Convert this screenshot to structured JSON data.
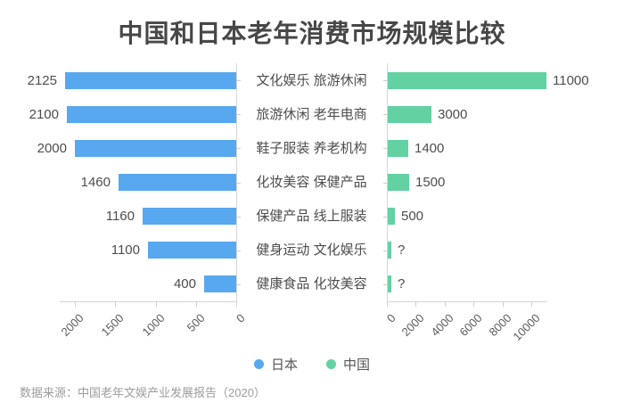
{
  "title": "中国和日本老年消费市场规模比较",
  "source_note": "数据来源：中国老年文娱产业发展报告（2020）",
  "legend": {
    "items": [
      {
        "label": "日本",
        "color": "#57a8ef"
      },
      {
        "label": "中国",
        "color": "#63d1a2"
      }
    ]
  },
  "chart_data": {
    "type": "bar",
    "subtype": "diverging-horizontal-tornado",
    "title": "中国和日本老年消费市场规模比较",
    "grid": false,
    "legend_position": "bottom",
    "categories": [
      "文化娱乐 旅游休闲",
      "旅游休闲 老年电商",
      "鞋子服装 养老机构",
      "化妆美容 保健产品",
      "保健产品 线上服装",
      "健身运动 文化娱乐",
      "健康食品 化妆美容"
    ],
    "series": [
      {
        "name": "日本",
        "side": "left",
        "color": "#57a8ef",
        "values": [
          2125,
          2100,
          2000,
          1460,
          1160,
          1100,
          400
        ],
        "value_labels": [
          "2125",
          "2100",
          "2000",
          "1460",
          "1160",
          "1100",
          "400"
        ],
        "axis_ticks": [
          "2000",
          "1500",
          "1000",
          "500",
          "0"
        ],
        "axis_tick_values": [
          2000,
          1500,
          1000,
          500,
          0
        ],
        "xlim": [
          0,
          2190
        ],
        "axis_reversed": true
      },
      {
        "name": "中国",
        "side": "right",
        "color": "#63d1a2",
        "values": [
          11000,
          3000,
          1400,
          1500,
          500,
          null,
          null
        ],
        "value_labels": [
          "11000",
          "3000",
          "1400",
          "1500",
          "500",
          "?",
          "?"
        ],
        "axis_ticks": [
          "0",
          "2000",
          "4000",
          "6000",
          "8000",
          "10000"
        ],
        "axis_tick_values": [
          0,
          2000,
          4000,
          6000,
          8000,
          10000
        ],
        "xlim": [
          0,
          11100
        ]
      }
    ]
  }
}
